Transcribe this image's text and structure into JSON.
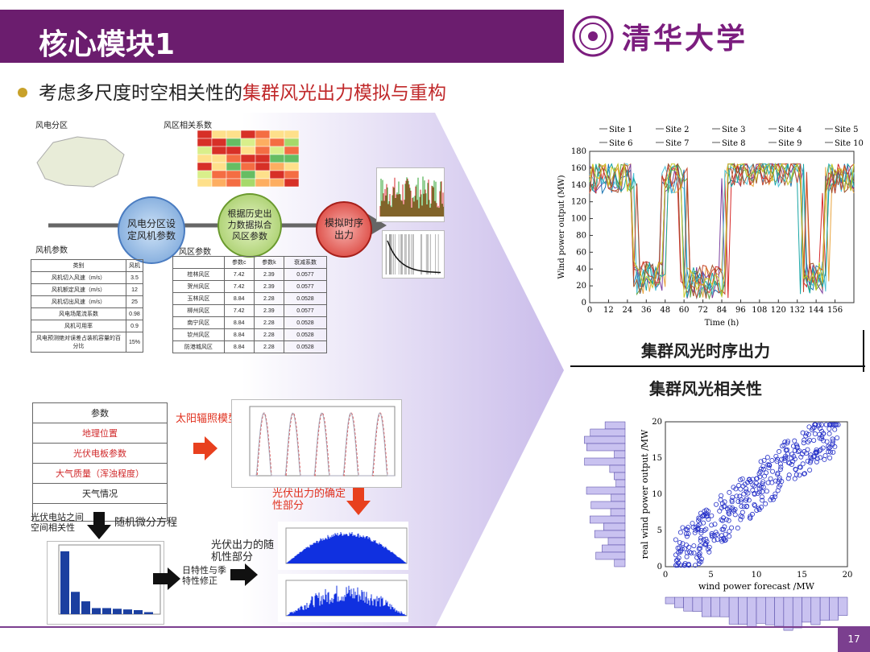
{
  "slide": {
    "title": "核心模块1",
    "subtitle_prefix": "考虑多尺度时空相关性的",
    "subtitle_highlight": "集群风光出力模拟与重构",
    "logo_text": "清华大学",
    "page_num": "17"
  },
  "wind": {
    "region_label": "风电分区",
    "corr_label": "风区相关系数",
    "param_label": "风机参数",
    "area_param_label": "风区参数",
    "step1": "风电分区设定风机参数",
    "step2": "根据历史出力数据拟合风区参数",
    "step3": "模拟时序出力",
    "turbine_table": {
      "headers": [
        "类别",
        "风机"
      ],
      "rows": [
        [
          "风机切入风速（m/s）",
          "3.5"
        ],
        [
          "风机额定风速（m/s）",
          "12"
        ],
        [
          "风机切出风速（m/s）",
          "25"
        ],
        [
          "风电场尾流系数",
          "0.98"
        ],
        [
          "风机可用率",
          "0.9"
        ],
        [
          "风电预测绝对误差占装机容量的百分比",
          "15%"
        ]
      ]
    },
    "area_table": {
      "headers": [
        "",
        "参数c",
        "参数k",
        "衰减系数"
      ],
      "rows": [
        [
          "桂林风区",
          "7.42",
          "2.39",
          "0.0577"
        ],
        [
          "贺州风区",
          "7.42",
          "2.39",
          "0.0577"
        ],
        [
          "玉林风区",
          "8.84",
          "2.28",
          "0.0528"
        ],
        [
          "柳州风区",
          "7.42",
          "2.39",
          "0.0577"
        ],
        [
          "南宁风区",
          "8.84",
          "2.28",
          "0.0528"
        ],
        [
          "钦州风区",
          "8.84",
          "2.28",
          "0.0528"
        ],
        [
          "防港城风区",
          "8.84",
          "2.28",
          "0.0528"
        ]
      ]
    }
  },
  "pv": {
    "param_list": [
      "参数",
      "地理位置",
      "光伏电板参数",
      "大气质量（浑浊程度）",
      "天气情况",
      "…"
    ],
    "solar_model": "太阳辐照模型",
    "deterministic": "光伏出力的确定性部分",
    "random": "光伏出力的随机性部分",
    "corr": "光伏电站之间空间相关性",
    "sde": "随机微分方程",
    "diurnal": "日特性与季特性修正"
  },
  "right": {
    "ts_title": "集群风光时序出力",
    "corr_title": "集群风光相关性"
  },
  "charts": {
    "wind_ts": {
      "type": "line",
      "xlabel": "Time (h)",
      "ylabel": "Wind power output (MW)",
      "xlim": [
        0,
        168
      ],
      "ylim": [
        0,
        180
      ],
      "xticks": [
        0,
        12,
        24,
        36,
        48,
        60,
        72,
        84,
        96,
        108,
        120,
        132,
        144,
        156
      ],
      "yticks": [
        0,
        20,
        40,
        60,
        80,
        100,
        120,
        140,
        160,
        180
      ],
      "legend": [
        "Site 1",
        "Site 2",
        "Site 3",
        "Site 4",
        "Site 5",
        "Site 6",
        "Site 7",
        "Site 8",
        "Site 9",
        "Site 10"
      ],
      "colors": [
        "#1f77b4",
        "#d62728",
        "#e8a33d",
        "#7b3f9e",
        "#5fa13a",
        "#4cc2d8",
        "#a0522d",
        "#17a5a5",
        "#c6452a",
        "#c9c927"
      ]
    },
    "scatter": {
      "type": "scatter",
      "xlabel": "wind power forecast /MW",
      "ylabel": "real wind power output /MW",
      "xlim": [
        0,
        20
      ],
      "ylim": [
        0,
        20
      ],
      "xticks": [
        0,
        5,
        10,
        15,
        20
      ],
      "yticks": [
        0,
        5,
        10,
        15,
        20
      ]
    }
  },
  "chart_data": [
    {
      "type": "line",
      "xlabel": "Time (h)",
      "ylabel": "Wind power output (MW)",
      "series_names": [
        "Site 1",
        "Site 2",
        "Site 3",
        "Site 4",
        "Site 5",
        "Site 6",
        "Site 7",
        "Site 8",
        "Site 9",
        "Site 10"
      ]
    },
    {
      "type": "scatter",
      "xlabel": "wind power forecast /MW",
      "ylabel": "real wind power output /MW"
    }
  ]
}
